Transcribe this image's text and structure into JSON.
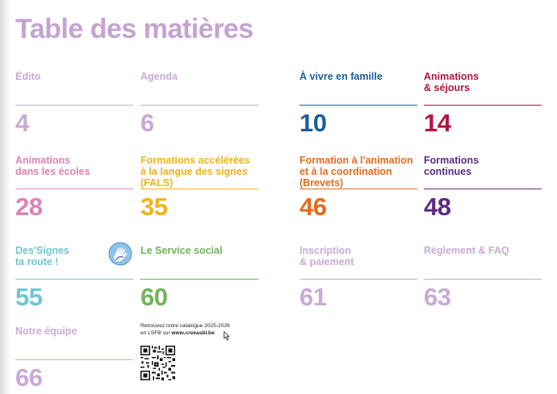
{
  "title": "Table des matières",
  "entries": [
    {
      "label": "Édito",
      "page": "4"
    },
    {
      "label": "Agenda",
      "page": "6"
    },
    {
      "label": "À vivre en famille",
      "page": "10"
    },
    {
      "label": "Animations\n& séjours",
      "page": "14"
    },
    {
      "label": "Animations\ndans les écoles",
      "page": "28"
    },
    {
      "label": "Formations accélérées\nà la langue des signes\n(FALS)",
      "page": "35"
    },
    {
      "label": "Formation à l'animation\net à la coordination\n(Brevets)",
      "page": "46"
    },
    {
      "label": "Formations\ncontinues",
      "page": "48"
    },
    {
      "label": "Des'Signes\nta route !",
      "page": "55"
    },
    {
      "label": "Le Service social",
      "page": "60"
    },
    {
      "label": "Inscription\n& paiement",
      "page": "61"
    },
    {
      "label": "Règlement & FAQ",
      "page": "63"
    },
    {
      "label": "Notre équipe",
      "page": "66"
    }
  ],
  "catalogue": {
    "line1": "Retrouvez notre catalogue 2025-2026",
    "line2_prefix": "en LSFB sur ",
    "link": "www.creeasbl.be"
  },
  "icons": {
    "sign_logo": "sign-language-hand-logo-icon",
    "qr": "qr-code-icon",
    "cursor": "mouse-cursor-icon"
  },
  "colors": {
    "title": "#c5a3d1",
    "lilac": "#c9aad6",
    "blue": "#1c5e9c",
    "red": "#b41442",
    "pink": "#de82b4",
    "yellow": "#f0b318",
    "orange": "#e36b1c",
    "purple": "#5b2b87",
    "teal": "#6ec6d0",
    "green": "#6fb55a"
  }
}
